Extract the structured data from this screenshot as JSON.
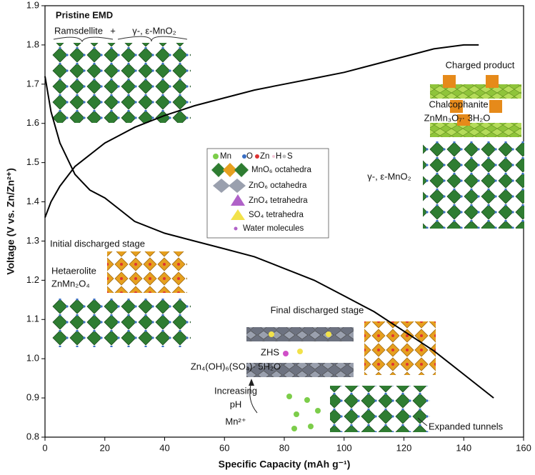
{
  "chart_data": {
    "type": "line",
    "xlabel": "Specific Capacity (mAh g⁻¹)",
    "ylabel": "Voltage (V vs. Zn/Zn²⁺)",
    "xlim": [
      0,
      160
    ],
    "xticks": [
      0,
      20,
      40,
      60,
      80,
      100,
      120,
      140,
      160
    ],
    "ylim": [
      0.8,
      1.9
    ],
    "yticks": [
      0.8,
      0.9,
      {
        "value": 1,
        "label": "1.0"
      },
      1.1,
      1.2,
      1.3,
      1.4,
      1.5,
      1.6,
      1.7,
      1.8,
      1.9
    ],
    "series": [
      {
        "color": "#000000",
        "x": [
          0,
          2,
          5,
          10,
          15,
          20,
          25,
          30,
          40,
          50,
          60,
          70,
          80,
          90,
          100,
          110,
          120,
          130,
          140,
          145,
          150
        ],
        "values": [
          1.72,
          1.63,
          1.55,
          1.47,
          1.43,
          1.41,
          1.38,
          1.35,
          1.32,
          1.3,
          1.28,
          1.26,
          1.23,
          1.2,
          1.16,
          1.12,
          1.07,
          1.02,
          0.96,
          0.93,
          0.9
        ]
      },
      {
        "color": "#000000",
        "x": [
          0,
          2,
          5,
          10,
          15,
          20,
          25,
          30,
          40,
          50,
          60,
          70,
          80,
          90,
          100,
          110,
          120,
          130,
          140,
          145
        ],
        "values": [
          1.36,
          1.4,
          1.44,
          1.49,
          1.52,
          1.55,
          1.57,
          1.59,
          1.62,
          1.645,
          1.665,
          1.685,
          1.7,
          1.715,
          1.73,
          1.75,
          1.77,
          1.79,
          1.8,
          1.8
        ]
      }
    ],
    "annotations": [
      "Pristine EMD",
      "Ramsdellite",
      "+",
      "γ-, ε-MnO₂",
      "Charged product",
      "Chalcophanite",
      "ZnMn₃O₇· 3H₂O",
      "γ-, ε-MnO₂",
      "Initial discharged stage",
      "Hetaerolite",
      "ZnMn₂O₄",
      "Final discharged stage",
      "ZHS",
      "Zn₄(OH)₆(SO₄)· 5H₂O",
      "Increasing",
      "pH",
      "Mn²⁺",
      "Expanded tunnels"
    ],
    "key": {
      "atoms": [
        "Mn",
        "O",
        "Zn",
        "H",
        "S"
      ],
      "units": [
        "MnO₆ octahedra",
        "ZnO₆ octahedra",
        "ZnO₄ tetrahedra",
        "SO₄ tetrahedra",
        "Water molecules"
      ]
    },
    "grid": false
  }
}
